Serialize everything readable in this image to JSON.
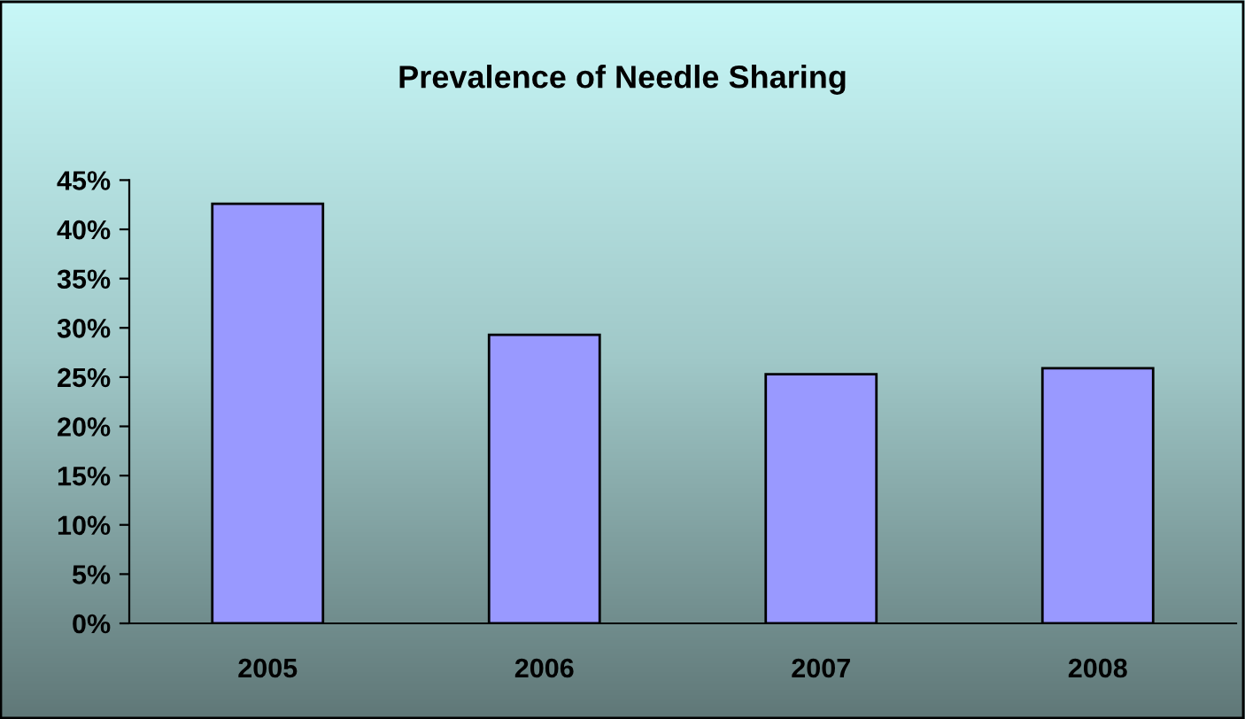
{
  "chart_data": {
    "type": "bar",
    "title": "Prevalence of Needle Sharing",
    "categories": [
      "2005",
      "2006",
      "2007",
      "2008"
    ],
    "values": [
      42.6,
      29.3,
      25.3,
      25.9
    ],
    "color": "#9999ff",
    "ylim": [
      0,
      45
    ],
    "yticks": [
      {
        "value": 0,
        "label": "0%"
      },
      {
        "value": 5,
        "label": "5%"
      },
      {
        "value": 10,
        "label": "10%"
      },
      {
        "value": 15,
        "label": "15%"
      },
      {
        "value": 20,
        "label": "20%"
      },
      {
        "value": 25,
        "label": "25%"
      },
      {
        "value": 30,
        "label": "30%"
      },
      {
        "value": 35,
        "label": "35%"
      },
      {
        "value": 40,
        "label": "40%"
      },
      {
        "value": 45,
        "label": "45%"
      }
    ],
    "grid": false,
    "legend": false
  }
}
